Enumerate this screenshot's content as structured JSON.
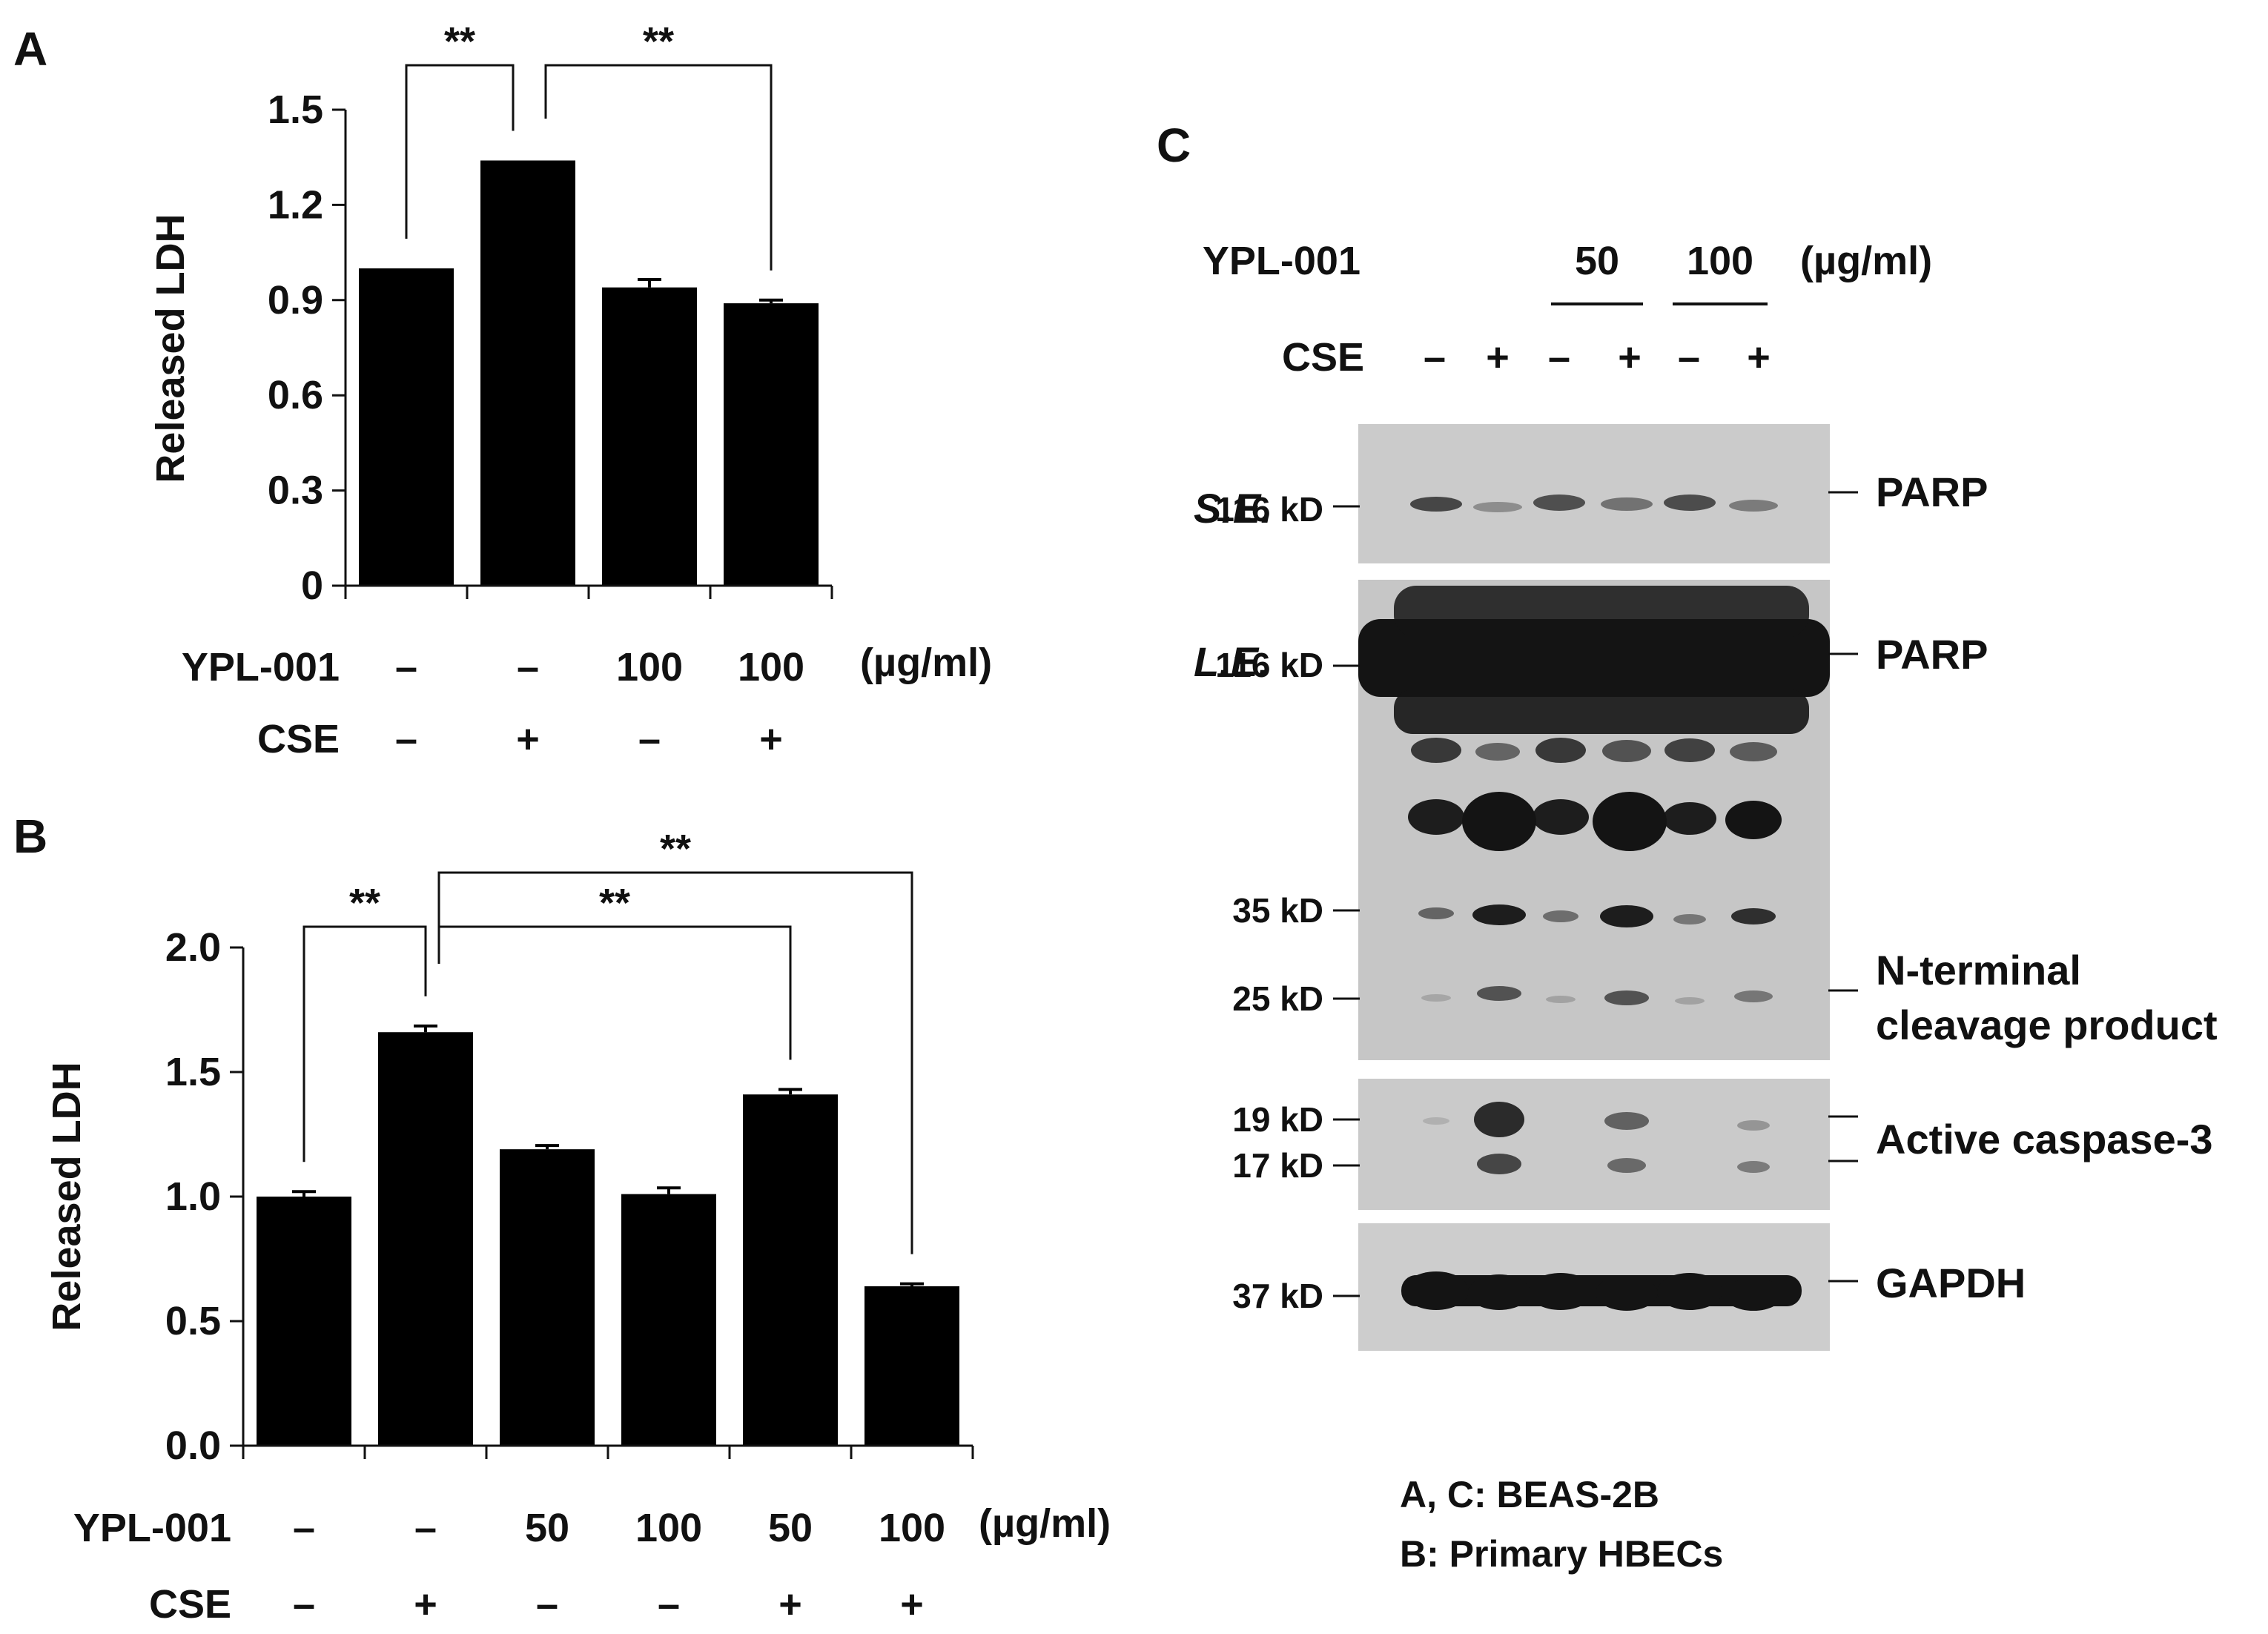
{
  "panels": {
    "a": "A",
    "b": "B",
    "c": "C"
  },
  "colors": {
    "bar": "#000000",
    "blot_background": "#c9c9c9",
    "band": "#161616"
  },
  "chart_data": [
    {
      "id": "A",
      "type": "bar",
      "categories": [
        "1",
        "2",
        "3",
        "4"
      ],
      "values": [
        1.0,
        1.34,
        0.94,
        0.89
      ],
      "errors": [
        0.0,
        0.0,
        0.025,
        0.01
      ],
      "ylabel": "Released LDH",
      "xlabel": "",
      "ylim": [
        0,
        1.5
      ],
      "yticks": [
        "0",
        "0.3",
        "0.6",
        "0.9",
        "1.2",
        "1.5"
      ],
      "conditions": [
        {
          "label": "YPL-001",
          "values": [
            "–",
            "–",
            "100",
            "100"
          ],
          "unit": "(µg/ml)"
        },
        {
          "label": "CSE",
          "values": [
            "–",
            "+",
            "–",
            "+"
          ]
        }
      ],
      "significance": [
        {
          "from": 0,
          "to": 1,
          "label": "**"
        },
        {
          "from": 1,
          "to": 3,
          "label": "**"
        }
      ]
    },
    {
      "id": "B",
      "type": "bar",
      "categories": [
        "1",
        "2",
        "3",
        "4",
        "5",
        "6"
      ],
      "values": [
        1.0,
        1.66,
        1.19,
        1.01,
        1.41,
        0.64
      ],
      "errors": [
        0.02,
        0.025,
        0.015,
        0.025,
        0.02,
        0.01
      ],
      "ylabel": "Released LDH",
      "xlabel": "",
      "ylim": [
        0,
        2.0
      ],
      "yticks": [
        "0.0",
        "0.5",
        "1.0",
        "1.5",
        "2.0"
      ],
      "conditions": [
        {
          "label": "YPL-001",
          "values": [
            "–",
            "–",
            "50",
            "100",
            "50",
            "100"
          ],
          "unit": "(µg/ml)"
        },
        {
          "label": "CSE",
          "values": [
            "–",
            "+",
            "–",
            "–",
            "+",
            "+"
          ]
        }
      ],
      "significance": [
        {
          "from": 0,
          "to": 1,
          "label": "**"
        },
        {
          "from": 1,
          "to": 4,
          "label": "**"
        },
        {
          "from": 1,
          "to": 5,
          "label": "**"
        }
      ]
    }
  ],
  "blot": {
    "treatment": {
      "label": "YPL-001",
      "doses": [
        "50",
        "100"
      ],
      "unit": "(µg/ml)",
      "cse_label": "CSE",
      "cse": [
        "–",
        "+",
        "–",
        "+",
        "–",
        "+"
      ]
    },
    "exposures": {
      "short": "S.E.",
      "long": "L.E."
    },
    "markers": {
      "m116a": "116 kD",
      "m116b": "116 kD",
      "m35": "35 kD",
      "m25": "25 kD",
      "m19": "19 kD",
      "m17": "17 kD",
      "m37": "37 kD"
    },
    "proteins": {
      "parp_se": "PARP",
      "parp_le": "PARP",
      "nterm_1": "N-terminal",
      "nterm_2": "cleavage product",
      "caspase": "Active caspase-3",
      "gapdh": "GAPDH"
    }
  },
  "notes": {
    "line1": "A, C: BEAS-2B",
    "line2": "B: Primary HBECs"
  }
}
